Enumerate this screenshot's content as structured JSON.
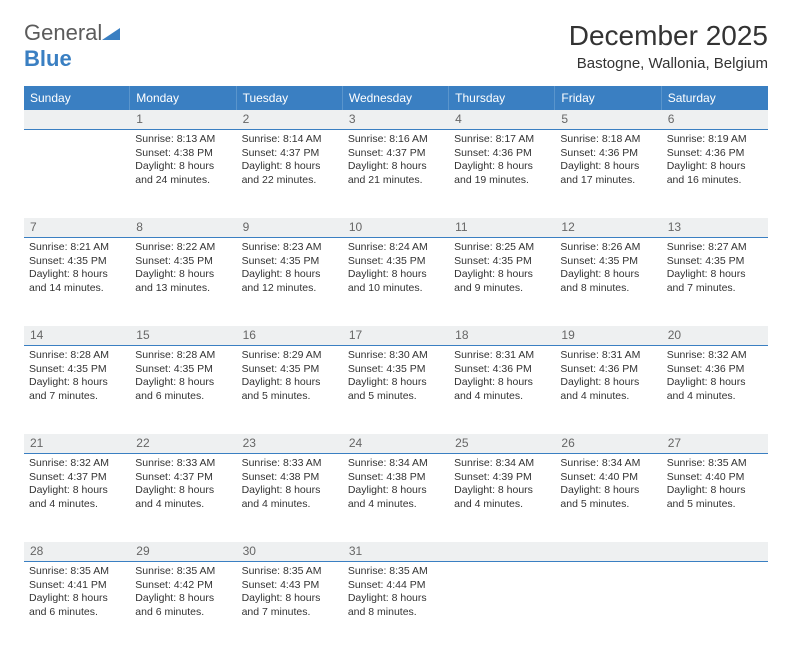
{
  "logo": {
    "text1": "General",
    "text2": "Blue",
    "tri_color": "#3a7fc2"
  },
  "title": "December 2025",
  "location": "Bastogne, Wallonia, Belgium",
  "colors": {
    "header_bg": "#3a7fc2",
    "header_text": "#ffffff",
    "daynum_bg": "#eef0f1",
    "daynum_border": "#3a7fc2",
    "body_text": "#333333",
    "daynum_text": "#666666"
  },
  "typography": {
    "title_fontsize": 28,
    "location_fontsize": 15,
    "weekday_fontsize": 12,
    "daynum_fontsize": 12,
    "cell_fontsize": 10.5
  },
  "layout": {
    "columns": 7,
    "weeks": 5,
    "cell_min_height": 88
  },
  "weekdays": [
    "Sunday",
    "Monday",
    "Tuesday",
    "Wednesday",
    "Thursday",
    "Friday",
    "Saturday"
  ],
  "weeks": [
    {
      "nums": [
        "",
        "1",
        "2",
        "3",
        "4",
        "5",
        "6"
      ],
      "cells": [
        {},
        {
          "sunrise": "Sunrise: 8:13 AM",
          "sunset": "Sunset: 4:38 PM",
          "daylight": "Daylight: 8 hours and 24 minutes."
        },
        {
          "sunrise": "Sunrise: 8:14 AM",
          "sunset": "Sunset: 4:37 PM",
          "daylight": "Daylight: 8 hours and 22 minutes."
        },
        {
          "sunrise": "Sunrise: 8:16 AM",
          "sunset": "Sunset: 4:37 PM",
          "daylight": "Daylight: 8 hours and 21 minutes."
        },
        {
          "sunrise": "Sunrise: 8:17 AM",
          "sunset": "Sunset: 4:36 PM",
          "daylight": "Daylight: 8 hours and 19 minutes."
        },
        {
          "sunrise": "Sunrise: 8:18 AM",
          "sunset": "Sunset: 4:36 PM",
          "daylight": "Daylight: 8 hours and 17 minutes."
        },
        {
          "sunrise": "Sunrise: 8:19 AM",
          "sunset": "Sunset: 4:36 PM",
          "daylight": "Daylight: 8 hours and 16 minutes."
        }
      ]
    },
    {
      "nums": [
        "7",
        "8",
        "9",
        "10",
        "11",
        "12",
        "13"
      ],
      "cells": [
        {
          "sunrise": "Sunrise: 8:21 AM",
          "sunset": "Sunset: 4:35 PM",
          "daylight": "Daylight: 8 hours and 14 minutes."
        },
        {
          "sunrise": "Sunrise: 8:22 AM",
          "sunset": "Sunset: 4:35 PM",
          "daylight": "Daylight: 8 hours and 13 minutes."
        },
        {
          "sunrise": "Sunrise: 8:23 AM",
          "sunset": "Sunset: 4:35 PM",
          "daylight": "Daylight: 8 hours and 12 minutes."
        },
        {
          "sunrise": "Sunrise: 8:24 AM",
          "sunset": "Sunset: 4:35 PM",
          "daylight": "Daylight: 8 hours and 10 minutes."
        },
        {
          "sunrise": "Sunrise: 8:25 AM",
          "sunset": "Sunset: 4:35 PM",
          "daylight": "Daylight: 8 hours and 9 minutes."
        },
        {
          "sunrise": "Sunrise: 8:26 AM",
          "sunset": "Sunset: 4:35 PM",
          "daylight": "Daylight: 8 hours and 8 minutes."
        },
        {
          "sunrise": "Sunrise: 8:27 AM",
          "sunset": "Sunset: 4:35 PM",
          "daylight": "Daylight: 8 hours and 7 minutes."
        }
      ]
    },
    {
      "nums": [
        "14",
        "15",
        "16",
        "17",
        "18",
        "19",
        "20"
      ],
      "cells": [
        {
          "sunrise": "Sunrise: 8:28 AM",
          "sunset": "Sunset: 4:35 PM",
          "daylight": "Daylight: 8 hours and 7 minutes."
        },
        {
          "sunrise": "Sunrise: 8:28 AM",
          "sunset": "Sunset: 4:35 PM",
          "daylight": "Daylight: 8 hours and 6 minutes."
        },
        {
          "sunrise": "Sunrise: 8:29 AM",
          "sunset": "Sunset: 4:35 PM",
          "daylight": "Daylight: 8 hours and 5 minutes."
        },
        {
          "sunrise": "Sunrise: 8:30 AM",
          "sunset": "Sunset: 4:35 PM",
          "daylight": "Daylight: 8 hours and 5 minutes."
        },
        {
          "sunrise": "Sunrise: 8:31 AM",
          "sunset": "Sunset: 4:36 PM",
          "daylight": "Daylight: 8 hours and 4 minutes."
        },
        {
          "sunrise": "Sunrise: 8:31 AM",
          "sunset": "Sunset: 4:36 PM",
          "daylight": "Daylight: 8 hours and 4 minutes."
        },
        {
          "sunrise": "Sunrise: 8:32 AM",
          "sunset": "Sunset: 4:36 PM",
          "daylight": "Daylight: 8 hours and 4 minutes."
        }
      ]
    },
    {
      "nums": [
        "21",
        "22",
        "23",
        "24",
        "25",
        "26",
        "27"
      ],
      "cells": [
        {
          "sunrise": "Sunrise: 8:32 AM",
          "sunset": "Sunset: 4:37 PM",
          "daylight": "Daylight: 8 hours and 4 minutes."
        },
        {
          "sunrise": "Sunrise: 8:33 AM",
          "sunset": "Sunset: 4:37 PM",
          "daylight": "Daylight: 8 hours and 4 minutes."
        },
        {
          "sunrise": "Sunrise: 8:33 AM",
          "sunset": "Sunset: 4:38 PM",
          "daylight": "Daylight: 8 hours and 4 minutes."
        },
        {
          "sunrise": "Sunrise: 8:34 AM",
          "sunset": "Sunset: 4:38 PM",
          "daylight": "Daylight: 8 hours and 4 minutes."
        },
        {
          "sunrise": "Sunrise: 8:34 AM",
          "sunset": "Sunset: 4:39 PM",
          "daylight": "Daylight: 8 hours and 4 minutes."
        },
        {
          "sunrise": "Sunrise: 8:34 AM",
          "sunset": "Sunset: 4:40 PM",
          "daylight": "Daylight: 8 hours and 5 minutes."
        },
        {
          "sunrise": "Sunrise: 8:35 AM",
          "sunset": "Sunset: 4:40 PM",
          "daylight": "Daylight: 8 hours and 5 minutes."
        }
      ]
    },
    {
      "nums": [
        "28",
        "29",
        "30",
        "31",
        "",
        "",
        ""
      ],
      "cells": [
        {
          "sunrise": "Sunrise: 8:35 AM",
          "sunset": "Sunset: 4:41 PM",
          "daylight": "Daylight: 8 hours and 6 minutes."
        },
        {
          "sunrise": "Sunrise: 8:35 AM",
          "sunset": "Sunset: 4:42 PM",
          "daylight": "Daylight: 8 hours and 6 minutes."
        },
        {
          "sunrise": "Sunrise: 8:35 AM",
          "sunset": "Sunset: 4:43 PM",
          "daylight": "Daylight: 8 hours and 7 minutes."
        },
        {
          "sunrise": "Sunrise: 8:35 AM",
          "sunset": "Sunset: 4:44 PM",
          "daylight": "Daylight: 8 hours and 8 minutes."
        },
        {},
        {},
        {}
      ]
    }
  ]
}
